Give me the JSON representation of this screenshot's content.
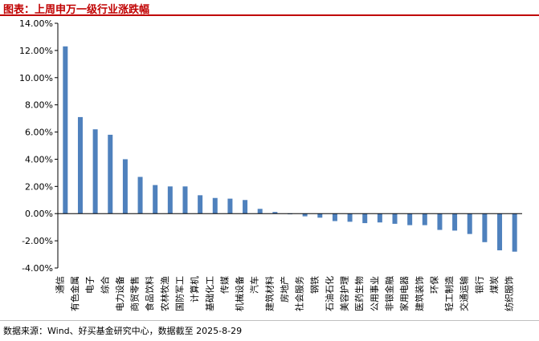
{
  "header": {
    "title": "图表：上周申万一级行业涨跌幅"
  },
  "footer": {
    "source": "数据来源：Wind、好买基金研究中心，数据截至 2025-8-29"
  },
  "colors": {
    "bar": "#4f81bd",
    "title": "#c00000",
    "axis": "#000000"
  },
  "chart_data": {
    "type": "bar",
    "title": "上周申万一级行业涨跌幅",
    "xlabel": "",
    "ylabel": "",
    "ylim": [
      -4.0,
      14.0
    ],
    "yticks": [
      -4.0,
      -2.0,
      0.0,
      2.0,
      4.0,
      6.0,
      8.0,
      10.0,
      12.0,
      14.0
    ],
    "ytick_labels": [
      "-4.00%",
      "-2.00%",
      "0.00%",
      "2.00%",
      "4.00%",
      "6.00%",
      "8.00%",
      "10.00%",
      "12.00%",
      "14.00%"
    ],
    "grid": false,
    "legend": "none",
    "categories": [
      "通信",
      "有色金属",
      "电子",
      "综合",
      "电力设备",
      "商贸零售",
      "食品饮料",
      "农林牧渔",
      "国防军工",
      "计算机",
      "基础化工",
      "传媒",
      "机械设备",
      "汽车",
      "建筑材料",
      "房地产",
      "社会服务",
      "钢铁",
      "石油石化",
      "美容护理",
      "医药生物",
      "公用事业",
      "非银金融",
      "家用电器",
      "建筑装饰",
      "环保",
      "轻工制造",
      "交通运输",
      "银行",
      "煤炭",
      "纺织服饰"
    ],
    "values": [
      12.3,
      7.1,
      6.2,
      5.8,
      4.0,
      2.7,
      2.1,
      2.0,
      2.0,
      1.35,
      1.15,
      1.1,
      1.0,
      0.35,
      0.12,
      -0.05,
      -0.2,
      -0.3,
      -0.55,
      -0.6,
      -0.7,
      -0.65,
      -0.75,
      -0.85,
      -0.85,
      -1.2,
      -1.25,
      -1.5,
      -2.1,
      -2.7,
      -2.8
    ]
  }
}
